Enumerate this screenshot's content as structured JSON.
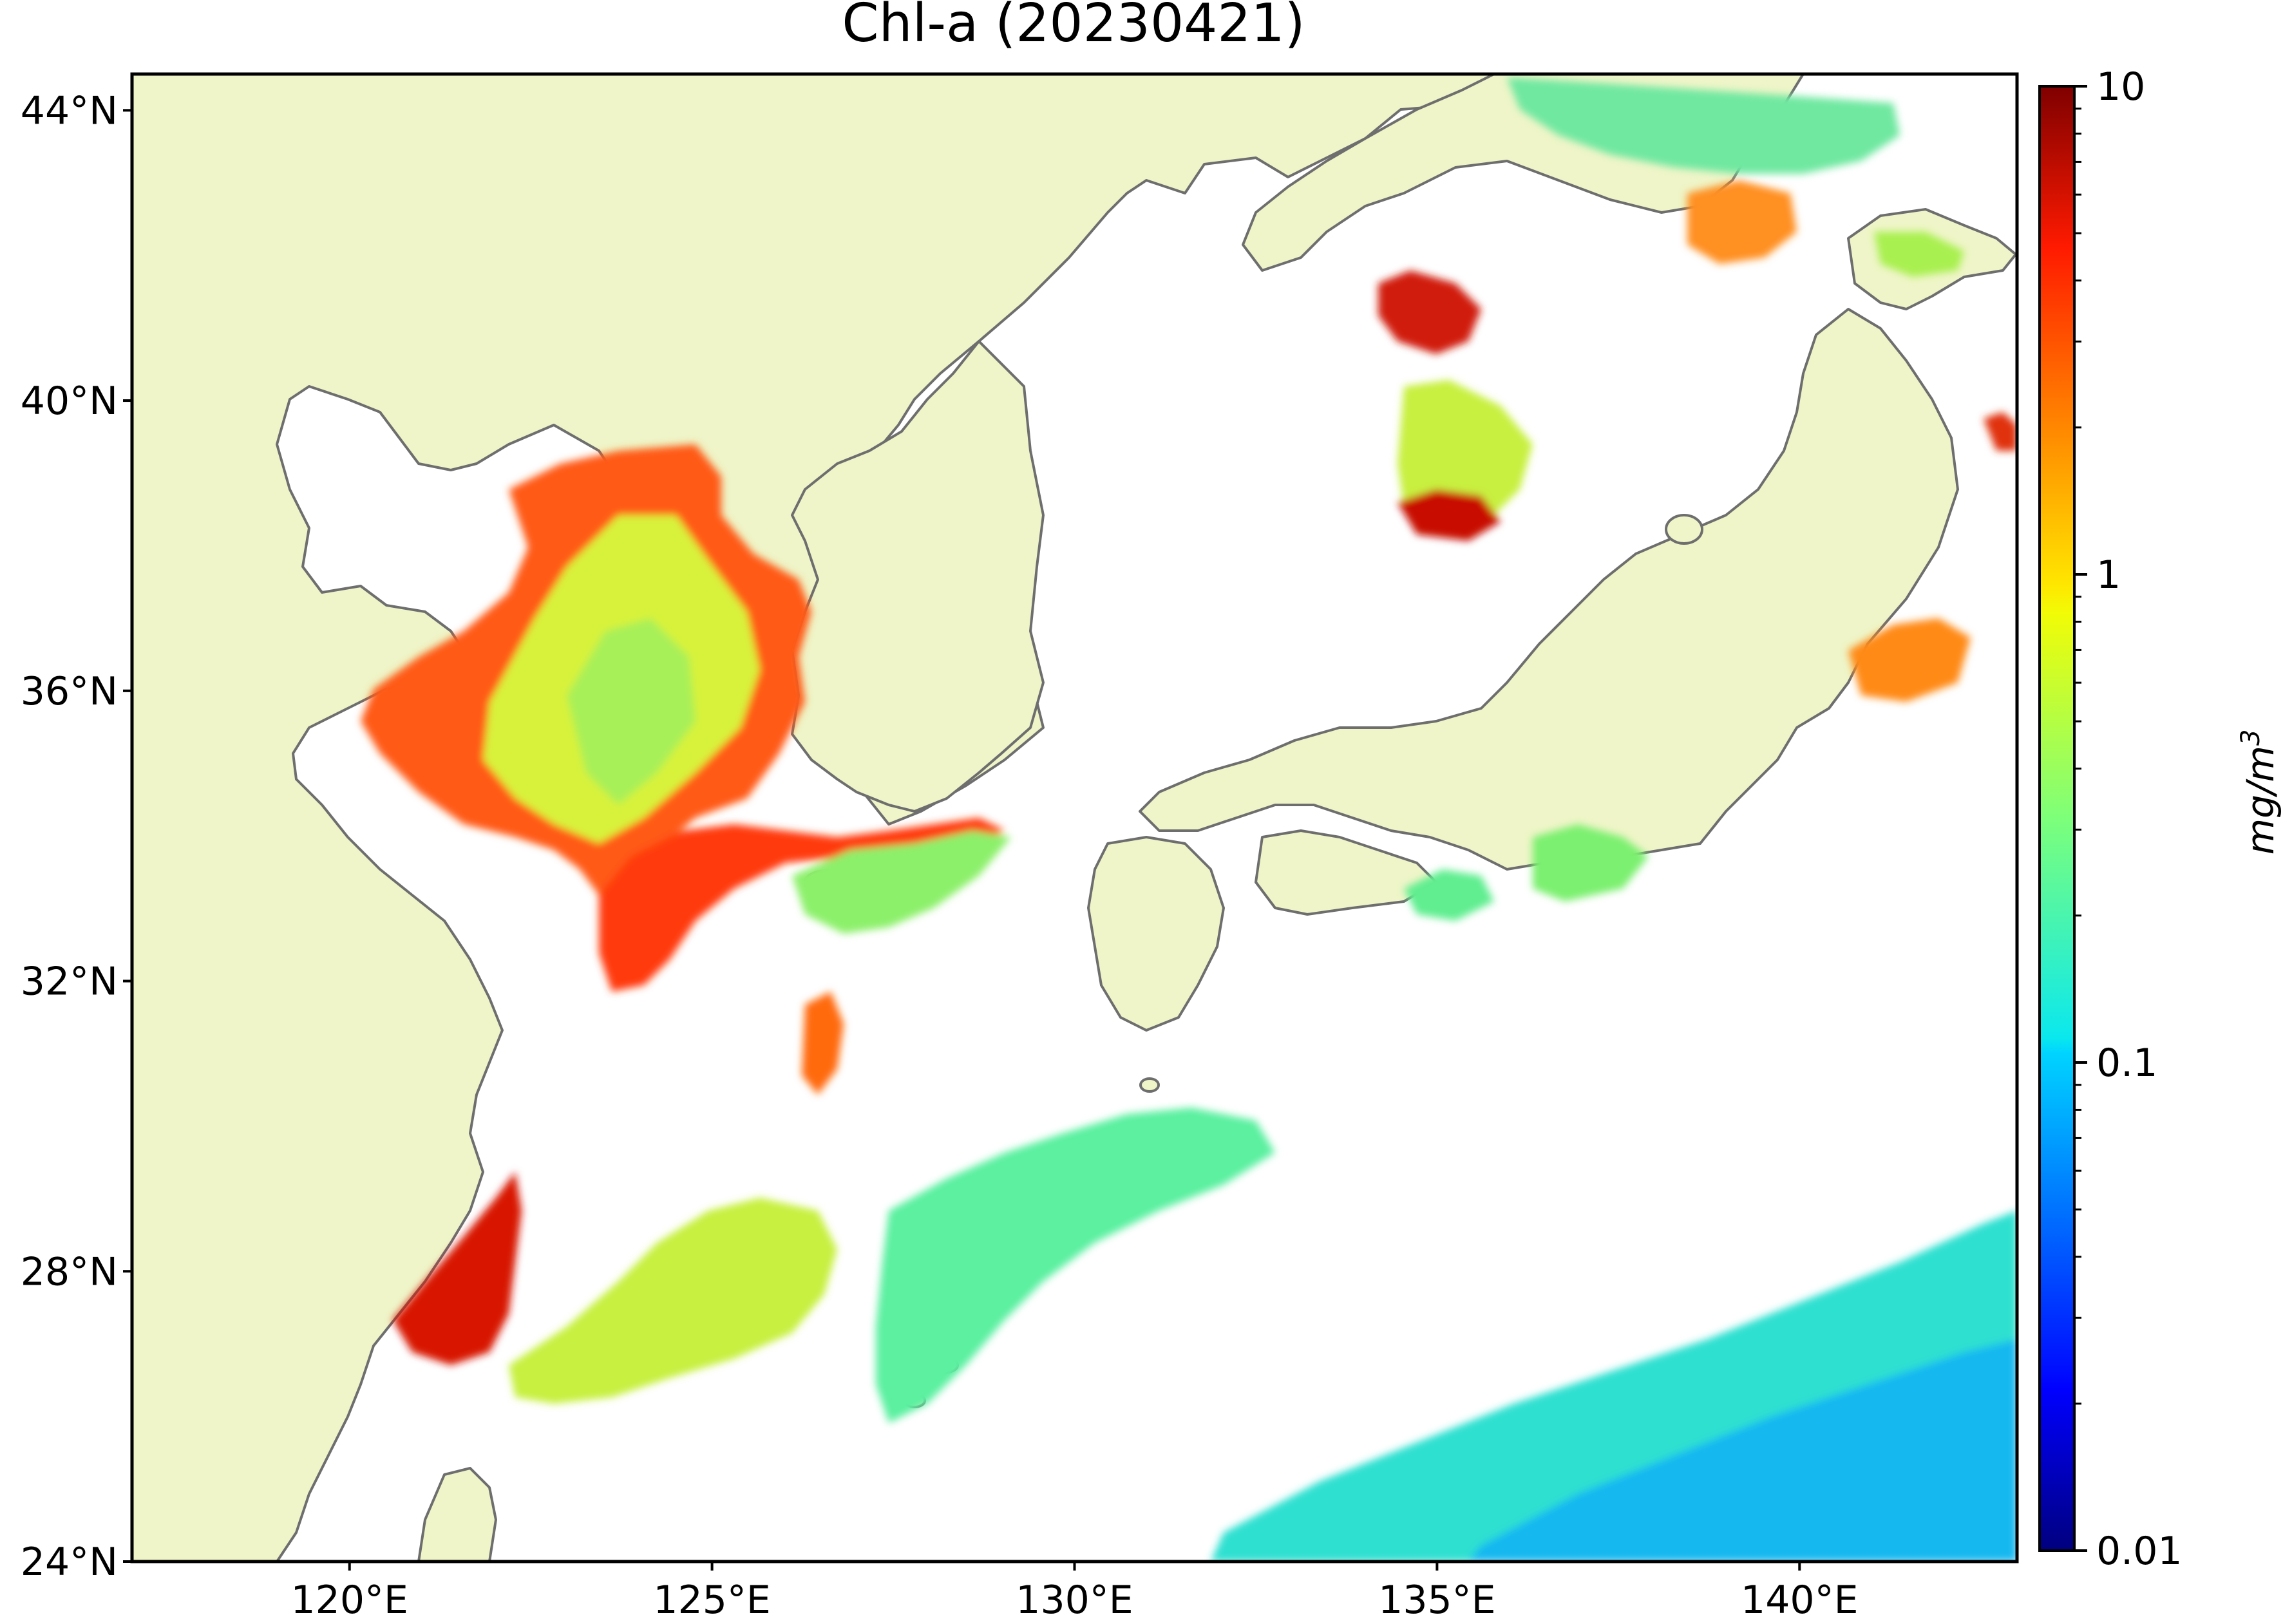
{
  "title": "Chl-a (20230421)",
  "colors": {
    "land": "#eff5c8",
    "ocean_nodata": "#ffffff",
    "coastline": "#6e6e6e",
    "frame": "#000000"
  },
  "map": {
    "lon_range": [
      117,
      143
    ],
    "lat_range": [
      24,
      44.5
    ],
    "lon_ticks": [
      {
        "value": 120,
        "label": "120°E"
      },
      {
        "value": 125,
        "label": "125°E"
      },
      {
        "value": 130,
        "label": "130°E"
      },
      {
        "value": 135,
        "label": "135°E"
      },
      {
        "value": 140,
        "label": "140°E"
      }
    ],
    "lat_ticks": [
      {
        "value": 24,
        "label": "24°N"
      },
      {
        "value": 28,
        "label": "28°N"
      },
      {
        "value": 32,
        "label": "32°N"
      },
      {
        "value": 36,
        "label": "36°N"
      },
      {
        "value": 40,
        "label": "40°N"
      },
      {
        "value": 44,
        "label": "44°N"
      }
    ]
  },
  "colorbar": {
    "label": "mg/m",
    "label_superscript": "3",
    "scale": "log",
    "range": [
      0.01,
      10
    ],
    "ticks": [
      {
        "value": 0.01,
        "label": "0.01"
      },
      {
        "value": 0.1,
        "label": "0.1"
      },
      {
        "value": 1,
        "label": "1"
      },
      {
        "value": 10,
        "label": "10"
      }
    ],
    "colormap": "jet"
  }
}
